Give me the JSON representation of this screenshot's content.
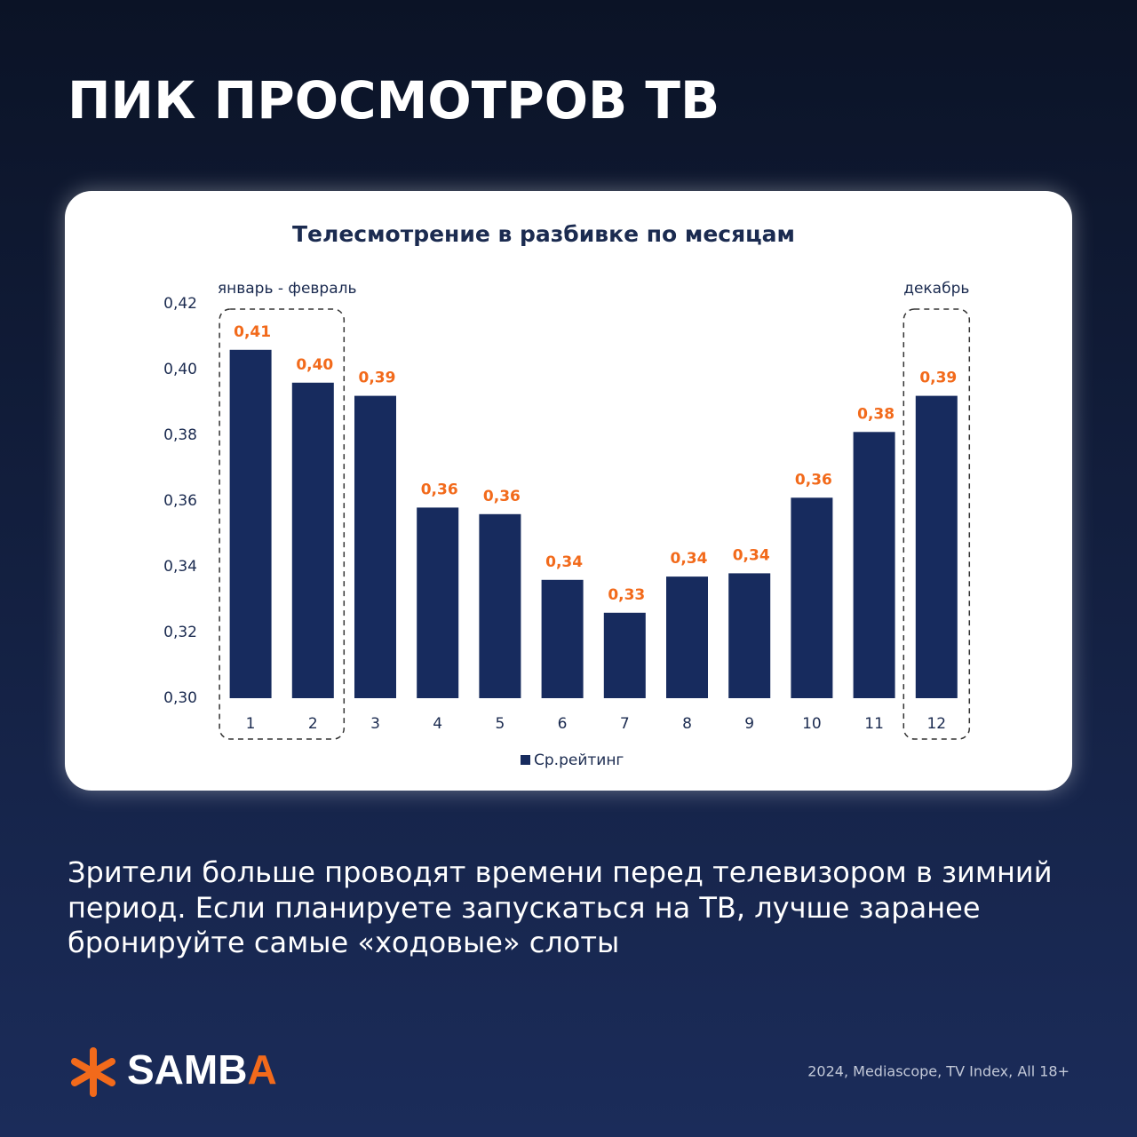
{
  "header": {
    "title": "ПИК ПРОСМОТРОВ ТВ"
  },
  "chart_data": {
    "type": "bar",
    "title": "Телесмотрение в разбивке по месяцам",
    "categories": [
      "1",
      "2",
      "3",
      "4",
      "5",
      "6",
      "7",
      "8",
      "9",
      "10",
      "11",
      "12"
    ],
    "series": [
      {
        "name": "Ср.рейтинг",
        "color": "#172b5e",
        "values": [
          0.406,
          0.396,
          0.392,
          0.358,
          0.356,
          0.336,
          0.326,
          0.337,
          0.338,
          0.361,
          0.381,
          0.392
        ],
        "value_labels": [
          "0,41",
          "0,40",
          "0,39",
          "0,36",
          "0,36",
          "0,34",
          "0,33",
          "0,34",
          "0,34",
          "0,36",
          "0,38",
          "0,39"
        ],
        "value_label_color": "#f26a1b"
      }
    ],
    "ylim": [
      0.3,
      0.42
    ],
    "yticks": [
      {
        "value": 0.3,
        "label": "0,30"
      },
      {
        "value": 0.32,
        "label": "0,32"
      },
      {
        "value": 0.34,
        "label": "0,34"
      },
      {
        "value": 0.36,
        "label": "0,36"
      },
      {
        "value": 0.38,
        "label": "0,38"
      },
      {
        "value": 0.4,
        "label": "0,40"
      },
      {
        "value": 0.42,
        "label": "0,42"
      }
    ],
    "annotations": [
      "январь - февраль",
      "декабрь"
    ],
    "legend": "bottom",
    "grid": false
  },
  "body": {
    "lines": [
      "Зрители больше проводят времени перед телевизором в зимний",
      "период. Если планируете запускаться на ТВ, лучше заранее",
      "бронируйте самые «ходовые» слоты"
    ]
  },
  "footer": {
    "logo": "SAMBA",
    "source": "2024, Mediascope, TV Index, All 18+"
  }
}
